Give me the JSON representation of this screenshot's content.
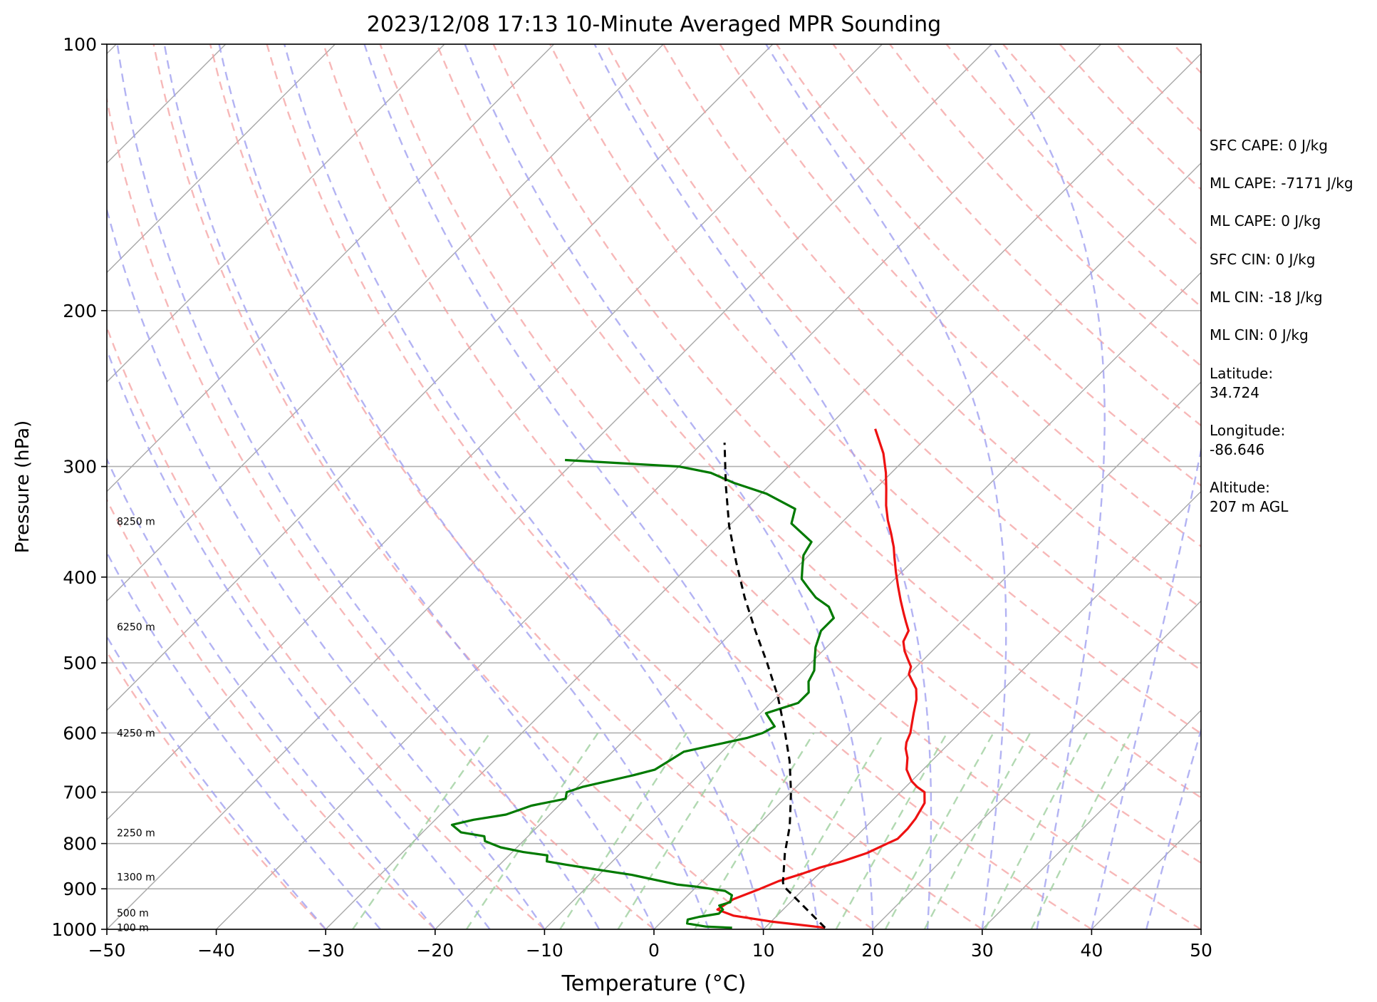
{
  "chart_data": {
    "type": "line",
    "title": "2023/12/08 17:13 10-Minute Averaged MPR Sounding",
    "xlabel": "Temperature (°C)",
    "ylabel": "Pressure (hPa)",
    "xlim": [
      -50,
      50
    ],
    "ylim": [
      1000,
      100
    ],
    "y_scale": "log",
    "grid": true,
    "x_ticks": [
      "−50",
      "−40",
      "−30",
      "−20",
      "−10",
      "0",
      "10",
      "20",
      "30",
      "40",
      "50"
    ],
    "x_tick_values": [
      -50,
      -40,
      -30,
      -20,
      -10,
      0,
      10,
      20,
      30,
      40,
      50
    ],
    "y_ticks": [
      "100",
      "200",
      "300",
      "400",
      "500",
      "600",
      "700",
      "800",
      "900",
      "1000"
    ],
    "y_tick_values": [
      100,
      200,
      300,
      400,
      500,
      600,
      700,
      800,
      900,
      1000
    ],
    "height_labels": [
      {
        "label": "8250 m",
        "p": 346
      },
      {
        "label": "6250 m",
        "p": 455
      },
      {
        "label": "4250 m",
        "p": 600
      },
      {
        "label": "2250 m",
        "p": 778
      },
      {
        "label": "1300 m",
        "p": 873
      },
      {
        "label": "500 m",
        "p": 958
      },
      {
        "label": "100 m",
        "p": 995
      }
    ],
    "series": [
      {
        "kind": "temperature",
        "color": "#ee1111",
        "points": [
          [
            15.5,
            996
          ],
          [
            10.0,
            980
          ],
          [
            6.0,
            965
          ],
          [
            4.0,
            950
          ],
          [
            4.5,
            925
          ],
          [
            6.0,
            900
          ],
          [
            7.0,
            882
          ],
          [
            8.5,
            865
          ],
          [
            9.5,
            852
          ],
          [
            11.0,
            838
          ],
          [
            12.5,
            820
          ],
          [
            13.5,
            800
          ],
          [
            14.0,
            790
          ],
          [
            14.0,
            770
          ],
          [
            13.8,
            750
          ],
          [
            13.2,
            720
          ],
          [
            12.2,
            700
          ],
          [
            11.0,
            690
          ],
          [
            10.0,
            680
          ],
          [
            8.5,
            660
          ],
          [
            7.5,
            640
          ],
          [
            6.5,
            625
          ],
          [
            6.0,
            615
          ],
          [
            5.5,
            600
          ],
          [
            5.0,
            590
          ],
          [
            4.0,
            570
          ],
          [
            3.0,
            550
          ],
          [
            2.0,
            535
          ],
          [
            1.0,
            525
          ],
          [
            0.0,
            515
          ],
          [
            -0.5,
            505
          ],
          [
            -1.5,
            495
          ],
          [
            -2.5,
            485
          ],
          [
            -3.5,
            473
          ],
          [
            -4.0,
            460
          ],
          [
            -5.0,
            450
          ],
          [
            -6.0,
            440
          ],
          [
            -7.5,
            425
          ],
          [
            -9.0,
            410
          ],
          [
            -10.5,
            395
          ],
          [
            -12.0,
            380
          ],
          [
            -13.0,
            370
          ],
          [
            -14.5,
            357
          ],
          [
            -16.0,
            345
          ],
          [
            -17.5,
            332
          ],
          [
            -19.0,
            318
          ],
          [
            -20.5,
            305
          ],
          [
            -22.5,
            290
          ],
          [
            -25.5,
            272
          ]
        ]
      },
      {
        "kind": "dewpoint",
        "color": "#007a00",
        "points": [
          [
            7.0,
            996
          ],
          [
            4.5,
            993
          ],
          [
            2.5,
            985
          ],
          [
            2.2,
            975
          ],
          [
            3.0,
            968
          ],
          [
            4.5,
            960
          ],
          [
            4.5,
            950
          ],
          [
            3.8,
            940
          ],
          [
            4.5,
            932
          ],
          [
            4.0,
            915
          ],
          [
            3.0,
            905
          ],
          [
            0.0,
            895
          ],
          [
            -2.0,
            890
          ],
          [
            -7.0,
            868
          ],
          [
            -11.0,
            855
          ],
          [
            -14.0,
            845
          ],
          [
            -16.0,
            838
          ],
          [
            -16.5,
            825
          ],
          [
            -19.0,
            818
          ],
          [
            -21.5,
            808
          ],
          [
            -23.5,
            795
          ],
          [
            -24.0,
            785
          ],
          [
            -26.5,
            777
          ],
          [
            -28.0,
            762
          ],
          [
            -26.5,
            752
          ],
          [
            -24.0,
            742
          ],
          [
            -22.5,
            725
          ],
          [
            -20.0,
            712
          ],
          [
            -20.5,
            700
          ],
          [
            -19.5,
            690
          ],
          [
            -16.0,
            670
          ],
          [
            -14.5,
            660
          ],
          [
            -14.0,
            645
          ],
          [
            -13.5,
            630
          ],
          [
            -11.5,
            620
          ],
          [
            -9.0,
            608
          ],
          [
            -8.0,
            600
          ],
          [
            -7.5,
            590
          ],
          [
            -9.5,
            570
          ],
          [
            -7.5,
            555
          ],
          [
            -7.5,
            540
          ],
          [
            -8.5,
            525
          ],
          [
            -9.0,
            510
          ],
          [
            -10.0,
            495
          ],
          [
            -11.0,
            480
          ],
          [
            -12.0,
            460
          ],
          [
            -12.0,
            445
          ],
          [
            -13.5,
            432
          ],
          [
            -15.5,
            422
          ],
          [
            -17.0,
            412
          ],
          [
            -18.5,
            402
          ],
          [
            -19.5,
            390
          ],
          [
            -20.5,
            378
          ],
          [
            -21.0,
            365
          ],
          [
            -24.5,
            348
          ],
          [
            -25.5,
            335
          ],
          [
            -29.5,
            322
          ],
          [
            -33.5,
            313
          ],
          [
            -36.5,
            305
          ],
          [
            -40.0,
            300
          ],
          [
            -51.0,
            295
          ]
        ]
      },
      {
        "kind": "parcel",
        "color": "#000000",
        "points": [
          [
            15.5,
            996
          ],
          [
            8.0,
            895
          ],
          [
            7.5,
            885
          ],
          [
            5.0,
            820
          ],
          [
            3.0,
            765
          ],
          [
            0.0,
            700
          ],
          [
            -3.0,
            645
          ],
          [
            -6.5,
            592
          ],
          [
            -10.0,
            545
          ],
          [
            -14.0,
            500
          ],
          [
            -18.0,
            460
          ],
          [
            -22.0,
            422
          ],
          [
            -26.0,
            385
          ],
          [
            -30.0,
            350
          ],
          [
            -34.0,
            315
          ],
          [
            -38.0,
            282
          ]
        ]
      }
    ]
  },
  "stats": [
    {
      "key": "sfc_cape",
      "text": "SFC CAPE: 0 J/kg"
    },
    {
      "key": "ml_cape_1",
      "text": "ML CAPE: -7171 J/kg"
    },
    {
      "key": "ml_cape_2",
      "text": "ML CAPE: 0 J/kg"
    },
    {
      "key": "sfc_cin",
      "text": "SFC CIN: 0 J/kg"
    },
    {
      "key": "ml_cin_1",
      "text": "ML CIN: -18 J/kg"
    },
    {
      "key": "ml_cin_2",
      "text": "ML CIN: 0 J/kg"
    },
    {
      "key": "lat_label",
      "text": "Latitude:"
    },
    {
      "key": "lat_value",
      "text": "34.724"
    },
    {
      "key": "lon_label",
      "text": "Longitude:"
    },
    {
      "key": "lon_value",
      "text": "-86.646"
    },
    {
      "key": "alt_label",
      "text": "Altitude:"
    },
    {
      "key": "alt_value",
      "text": "207 m AGL"
    }
  ],
  "colors": {
    "isobar": "#b0b0b0",
    "isotherm": "#a8a8a8",
    "dry_adiabat": "#f4a0a0",
    "moist_adiabat": "#a0a0f0",
    "mixing_ratio": "#9fd09f"
  }
}
